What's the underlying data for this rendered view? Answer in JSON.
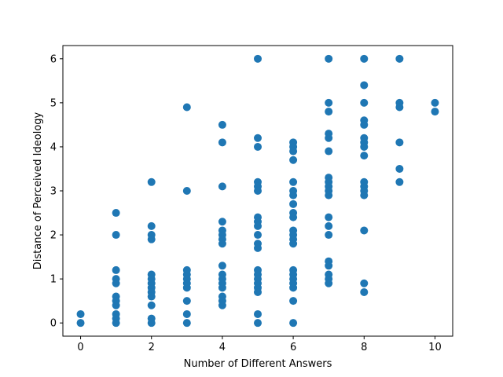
{
  "chart_data": {
    "type": "scatter",
    "xlabel": "Number of Different Answers",
    "ylabel": "Distance of Perceived Ideology",
    "xlim": [
      -0.5,
      10.5
    ],
    "ylim": [
      -0.3,
      6.3
    ],
    "x_ticks": [
      0,
      2,
      4,
      6,
      8,
      10
    ],
    "y_ticks": [
      0,
      1,
      2,
      3,
      4,
      5,
      6
    ],
    "grid": false,
    "marker_color": "#1f77b4",
    "points": [
      {
        "x": 0,
        "y": 0.2
      },
      {
        "x": 0,
        "y": 0.0
      },
      {
        "x": 1,
        "y": 2.5
      },
      {
        "x": 1,
        "y": 2.0
      },
      {
        "x": 1,
        "y": 1.2
      },
      {
        "x": 1,
        "y": 1.0
      },
      {
        "x": 1,
        "y": 0.9
      },
      {
        "x": 1,
        "y": 0.6
      },
      {
        "x": 1,
        "y": 0.5
      },
      {
        "x": 1,
        "y": 0.4
      },
      {
        "x": 1,
        "y": 0.2
      },
      {
        "x": 1,
        "y": 0.1
      },
      {
        "x": 1,
        "y": 0.0
      },
      {
        "x": 2,
        "y": 3.2
      },
      {
        "x": 2,
        "y": 2.2
      },
      {
        "x": 2,
        "y": 2.0
      },
      {
        "x": 2,
        "y": 1.9
      },
      {
        "x": 2,
        "y": 1.1
      },
      {
        "x": 2,
        "y": 1.0
      },
      {
        "x": 2,
        "y": 0.9
      },
      {
        "x": 2,
        "y": 0.8
      },
      {
        "x": 2,
        "y": 0.7
      },
      {
        "x": 2,
        "y": 0.6
      },
      {
        "x": 2,
        "y": 0.4
      },
      {
        "x": 2,
        "y": 0.1
      },
      {
        "x": 2,
        "y": 0.0
      },
      {
        "x": 3,
        "y": 4.9
      },
      {
        "x": 3,
        "y": 3.0
      },
      {
        "x": 3,
        "y": 1.2
      },
      {
        "x": 3,
        "y": 1.1
      },
      {
        "x": 3,
        "y": 1.0
      },
      {
        "x": 3,
        "y": 0.9
      },
      {
        "x": 3,
        "y": 0.8
      },
      {
        "x": 3,
        "y": 0.5
      },
      {
        "x": 3,
        "y": 0.2
      },
      {
        "x": 3,
        "y": 0.0
      },
      {
        "x": 4,
        "y": 4.5
      },
      {
        "x": 4,
        "y": 4.1
      },
      {
        "x": 4,
        "y": 3.1
      },
      {
        "x": 4,
        "y": 2.3
      },
      {
        "x": 4,
        "y": 2.1
      },
      {
        "x": 4,
        "y": 2.0
      },
      {
        "x": 4,
        "y": 1.9
      },
      {
        "x": 4,
        "y": 1.8
      },
      {
        "x": 4,
        "y": 1.3
      },
      {
        "x": 4,
        "y": 1.1
      },
      {
        "x": 4,
        "y": 1.0
      },
      {
        "x": 4,
        "y": 0.9
      },
      {
        "x": 4,
        "y": 0.8
      },
      {
        "x": 4,
        "y": 0.6
      },
      {
        "x": 4,
        "y": 0.5
      },
      {
        "x": 4,
        "y": 0.4
      },
      {
        "x": 5,
        "y": 6.0
      },
      {
        "x": 5,
        "y": 4.2
      },
      {
        "x": 5,
        "y": 4.0
      },
      {
        "x": 5,
        "y": 3.2
      },
      {
        "x": 5,
        "y": 3.1
      },
      {
        "x": 5,
        "y": 3.0
      },
      {
        "x": 5,
        "y": 2.4
      },
      {
        "x": 5,
        "y": 2.3
      },
      {
        "x": 5,
        "y": 2.2
      },
      {
        "x": 5,
        "y": 2.0
      },
      {
        "x": 5,
        "y": 1.8
      },
      {
        "x": 5,
        "y": 1.7
      },
      {
        "x": 5,
        "y": 1.2
      },
      {
        "x": 5,
        "y": 1.1
      },
      {
        "x": 5,
        "y": 1.0
      },
      {
        "x": 5,
        "y": 0.9
      },
      {
        "x": 5,
        "y": 0.8
      },
      {
        "x": 5,
        "y": 0.7
      },
      {
        "x": 5,
        "y": 0.2
      },
      {
        "x": 5,
        "y": 0.0
      },
      {
        "x": 6,
        "y": 4.1
      },
      {
        "x": 6,
        "y": 4.0
      },
      {
        "x": 6,
        "y": 3.9
      },
      {
        "x": 6,
        "y": 3.7
      },
      {
        "x": 6,
        "y": 3.2
      },
      {
        "x": 6,
        "y": 3.0
      },
      {
        "x": 6,
        "y": 2.9
      },
      {
        "x": 6,
        "y": 2.7
      },
      {
        "x": 6,
        "y": 2.5
      },
      {
        "x": 6,
        "y": 2.4
      },
      {
        "x": 6,
        "y": 2.1
      },
      {
        "x": 6,
        "y": 2.0
      },
      {
        "x": 6,
        "y": 1.9
      },
      {
        "x": 6,
        "y": 1.8
      },
      {
        "x": 6,
        "y": 1.2
      },
      {
        "x": 6,
        "y": 1.1
      },
      {
        "x": 6,
        "y": 1.0
      },
      {
        "x": 6,
        "y": 0.9
      },
      {
        "x": 6,
        "y": 0.8
      },
      {
        "x": 6,
        "y": 0.5
      },
      {
        "x": 6,
        "y": 0.0
      },
      {
        "x": 7,
        "y": 6.0
      },
      {
        "x": 7,
        "y": 5.0
      },
      {
        "x": 7,
        "y": 4.8
      },
      {
        "x": 7,
        "y": 4.3
      },
      {
        "x": 7,
        "y": 4.2
      },
      {
        "x": 7,
        "y": 3.9
      },
      {
        "x": 7,
        "y": 3.3
      },
      {
        "x": 7,
        "y": 3.2
      },
      {
        "x": 7,
        "y": 3.1
      },
      {
        "x": 7,
        "y": 3.0
      },
      {
        "x": 7,
        "y": 2.9
      },
      {
        "x": 7,
        "y": 2.4
      },
      {
        "x": 7,
        "y": 2.2
      },
      {
        "x": 7,
        "y": 2.0
      },
      {
        "x": 7,
        "y": 1.4
      },
      {
        "x": 7,
        "y": 1.3
      },
      {
        "x": 7,
        "y": 1.1
      },
      {
        "x": 7,
        "y": 1.0
      },
      {
        "x": 7,
        "y": 0.9
      },
      {
        "x": 8,
        "y": 6.0
      },
      {
        "x": 8,
        "y": 5.4
      },
      {
        "x": 8,
        "y": 5.0
      },
      {
        "x": 8,
        "y": 4.6
      },
      {
        "x": 8,
        "y": 4.5
      },
      {
        "x": 8,
        "y": 4.2
      },
      {
        "x": 8,
        "y": 4.1
      },
      {
        "x": 8,
        "y": 4.0
      },
      {
        "x": 8,
        "y": 3.8
      },
      {
        "x": 8,
        "y": 3.2
      },
      {
        "x": 8,
        "y": 3.1
      },
      {
        "x": 8,
        "y": 3.0
      },
      {
        "x": 8,
        "y": 2.9
      },
      {
        "x": 8,
        "y": 2.1
      },
      {
        "x": 8,
        "y": 0.9
      },
      {
        "x": 8,
        "y": 0.7
      },
      {
        "x": 9,
        "y": 6.0
      },
      {
        "x": 9,
        "y": 5.0
      },
      {
        "x": 9,
        "y": 4.9
      },
      {
        "x": 9,
        "y": 4.1
      },
      {
        "x": 9,
        "y": 3.5
      },
      {
        "x": 9,
        "y": 3.2
      },
      {
        "x": 10,
        "y": 5.0
      },
      {
        "x": 10,
        "y": 4.8
      }
    ]
  }
}
